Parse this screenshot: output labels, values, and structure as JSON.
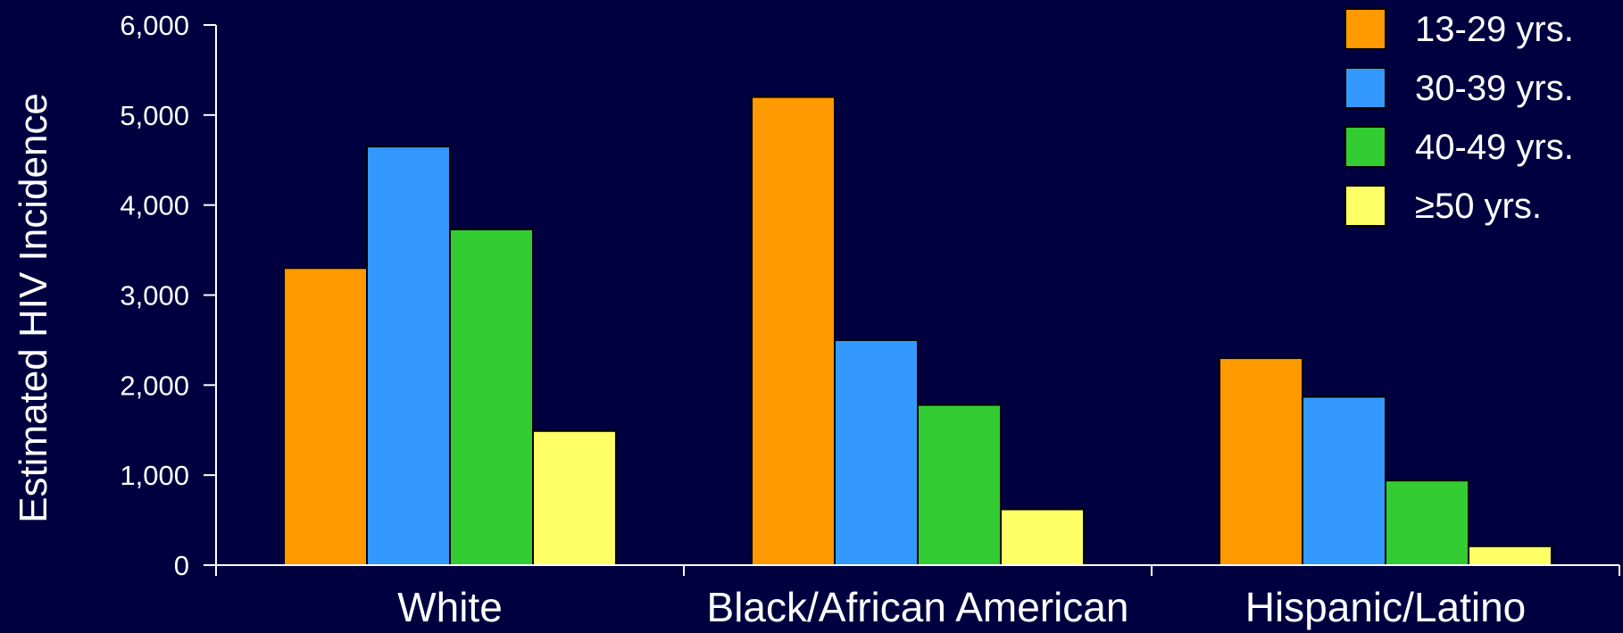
{
  "chart_data": {
    "type": "bar",
    "ylabel": "Estimated HIV Incidence",
    "xlabel": "",
    "ylim": [
      0,
      6000
    ],
    "yticks": [
      0,
      1000,
      2000,
      3000,
      4000,
      5000,
      6000
    ],
    "ytick_labels": [
      "0",
      "1,000",
      "2,000",
      "3,000",
      "4,000",
      "5,000",
      "6,000"
    ],
    "categories": [
      "White",
      "Black/African American",
      "Hispanic/Latino"
    ],
    "series": [
      {
        "name": "13-29 yrs.",
        "color": "#ff9900",
        "values": [
          3300,
          5200,
          2300
        ]
      },
      {
        "name": "30-39 yrs.",
        "color": "#3399ff",
        "values": [
          4650,
          2500,
          1870
        ]
      },
      {
        "name": "40-49 yrs.",
        "color": "#33cc33",
        "values": [
          3730,
          1780,
          940
        ]
      },
      {
        "name": "≥50 yrs.",
        "color": "#ffff66",
        "values": [
          1490,
          620,
          210
        ]
      }
    ],
    "legend": "top-right",
    "grid": false
  },
  "colors": {
    "background": "#000040",
    "axis": "#ffffff",
    "bar_border": "#000000"
  }
}
